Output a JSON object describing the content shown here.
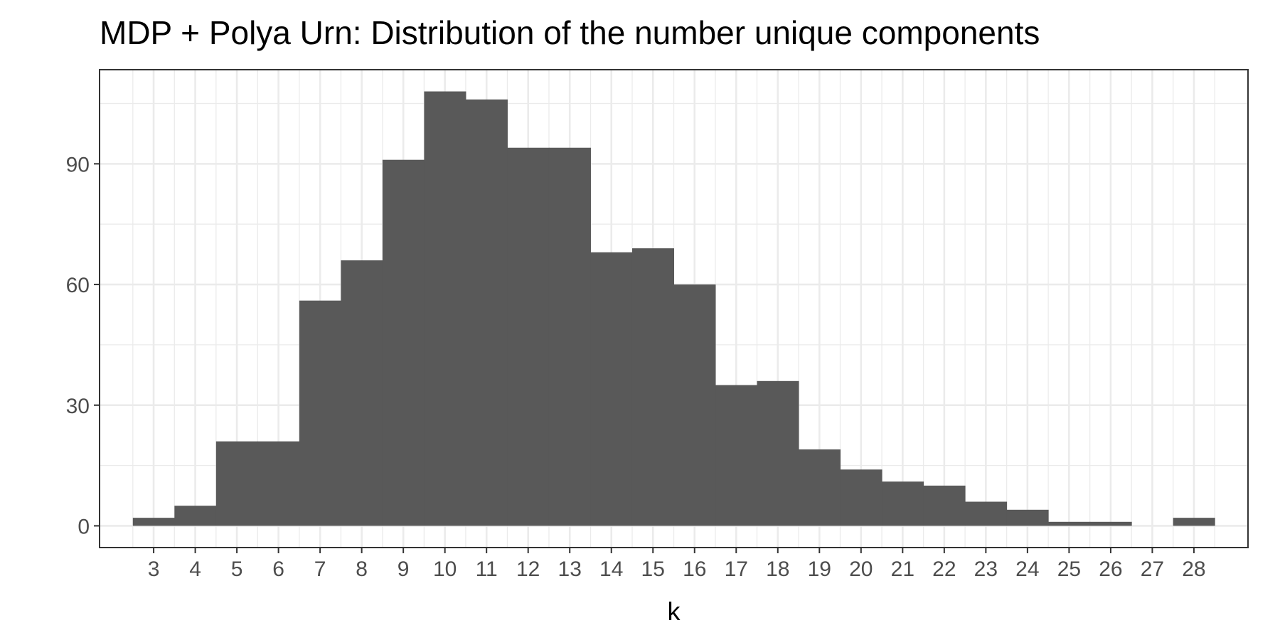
{
  "chart_data": {
    "type": "bar",
    "title": "MDP + Polya Urn: Distribution of the number unique components",
    "xlabel": "k",
    "ylabel": "",
    "categories": [
      "3",
      "4",
      "5",
      "6",
      "7",
      "8",
      "9",
      "10",
      "11",
      "12",
      "13",
      "14",
      "15",
      "16",
      "17",
      "18",
      "19",
      "20",
      "21",
      "22",
      "23",
      "24",
      "25",
      "26",
      "27",
      "28"
    ],
    "values": [
      2,
      5,
      21,
      21,
      56,
      66,
      91,
      108,
      106,
      94,
      94,
      68,
      69,
      60,
      35,
      36,
      19,
      14,
      11,
      10,
      6,
      4,
      1,
      1,
      0,
      2
    ],
    "xlim": [
      1.7,
      29.3
    ],
    "ylim": [
      -5.4,
      113.4
    ],
    "y_ticks": [
      0,
      30,
      60,
      90
    ],
    "y_tick_labels": [
      "0",
      "30",
      "60",
      "90"
    ],
    "grid": true,
    "bar_color": "#595959",
    "grid_color": "#ebebeb",
    "panel_border_color": "#333333"
  }
}
